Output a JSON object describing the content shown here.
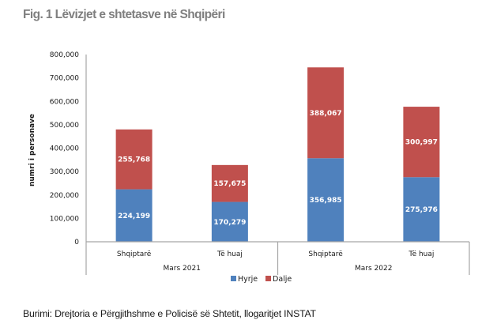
{
  "figure": {
    "title": "Fig. 1 Lëvizjet e shtetasve në Shqipëri",
    "source": "Burimi: Drejtoria e Përgjithshme e Policisë së Shtetit, llogaritjet INSTAT"
  },
  "chart_data": {
    "type": "bar",
    "stacked": true,
    "title": "Fig. 1 Lëvizjet e shtetasve në Shqipëri",
    "xlabel": "",
    "ylabel": "numri i personave",
    "ylim": [
      0,
      800000
    ],
    "yticks": [
      0,
      100000,
      200000,
      300000,
      400000,
      500000,
      600000,
      700000,
      800000
    ],
    "ytick_labels": [
      "0",
      "100,000",
      "200,000",
      "300,000",
      "400,000",
      "500,000",
      "600,000",
      "700,000",
      "800,000"
    ],
    "categories": [
      "Shqiptarë",
      "Të huaj",
      "Shqiptarë",
      "Të huaj"
    ],
    "groups": [
      {
        "label": "Mars 2021",
        "categories": [
          0,
          1
        ]
      },
      {
        "label": "Mars 2022",
        "categories": [
          2,
          3
        ]
      }
    ],
    "series": [
      {
        "name": "Hyrje",
        "color": "#4f81bd",
        "values": [
          224199,
          170279,
          356985,
          275976
        ],
        "labels": [
          "224,199",
          "170,279",
          "356,985",
          "275,976"
        ]
      },
      {
        "name": "Dalje",
        "color": "#c0504d",
        "values": [
          255768,
          157675,
          388067,
          300997
        ],
        "labels": [
          "255,768",
          "157,675",
          "388,067",
          "300,997"
        ]
      }
    ],
    "grid": false,
    "legend_position": "bottom"
  }
}
